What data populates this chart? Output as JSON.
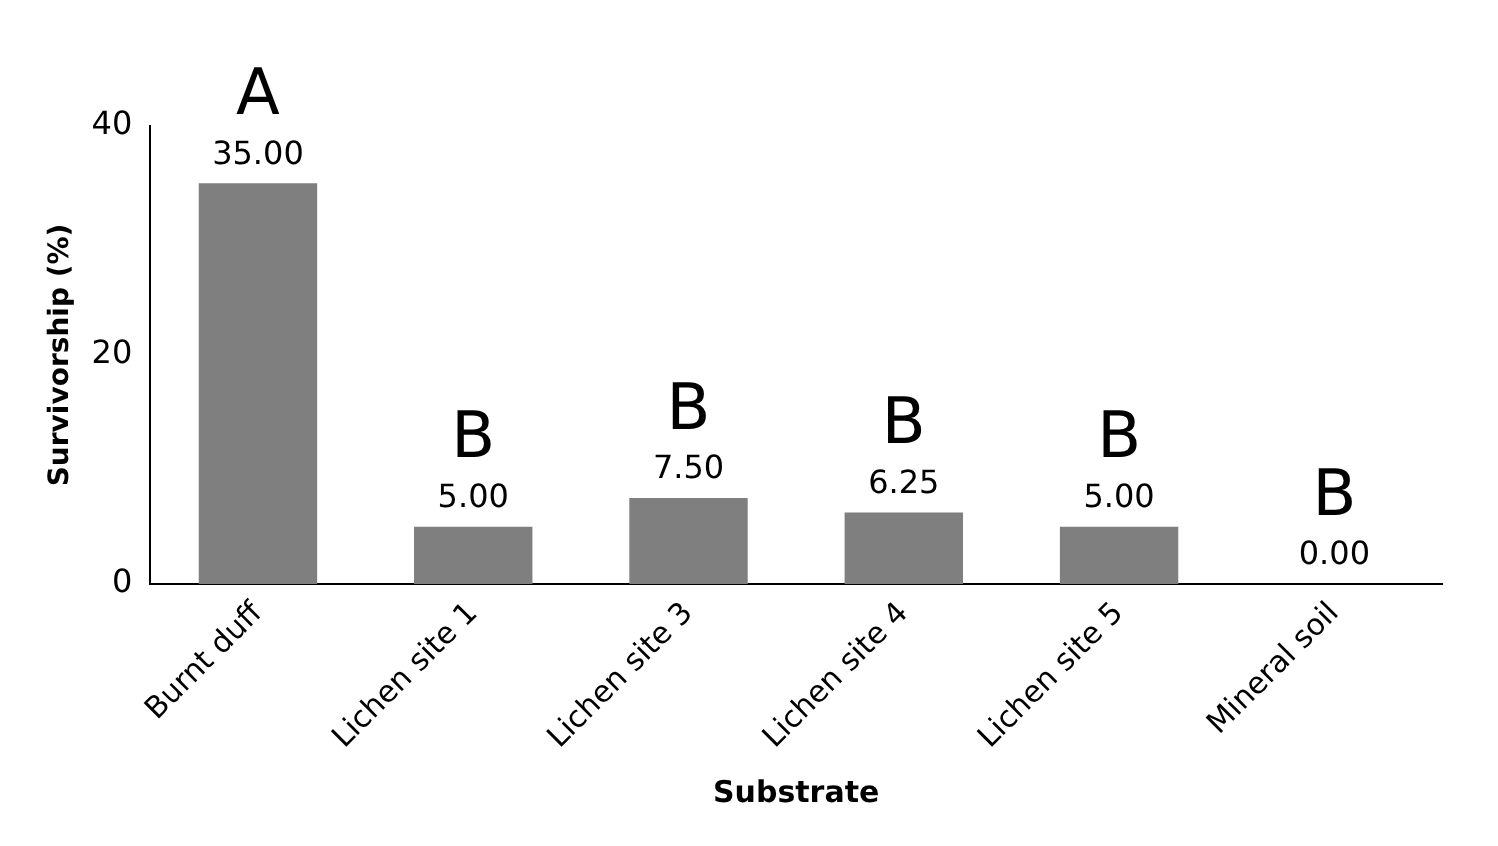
{
  "chart_data": {
    "type": "bar",
    "xlabel": "Substrate",
    "ylabel": "Survivorship (%)",
    "categories": [
      "Burnt duff",
      "Lichen site 1",
      "Lichen site 3",
      "Lichen site 4",
      "Lichen site 5",
      "Mineral soil"
    ],
    "values": [
      35,
      5,
      7.5,
      6.25,
      5,
      0
    ],
    "value_labels": [
      "35.00",
      "5.00",
      "7.50",
      "6.25",
      "5.00",
      "0.00"
    ],
    "color": "#7f7f7f",
    "ylim": [
      0,
      40
    ],
    "yticks": [
      0,
      20,
      40
    ],
    "grid": false,
    "legend": false,
    "annotations": [
      {
        "text": "A",
        "x": "Burnt duff",
        "y": 35
      },
      {
        "text": "B",
        "x": "Lichen site 1",
        "y": 5
      },
      {
        "text": "B",
        "x": "Lichen site 3",
        "y": 7.5
      },
      {
        "text": "B",
        "x": "Lichen site 4",
        "y": 6.25
      },
      {
        "text": "B",
        "x": "Lichen site 5",
        "y": 5
      },
      {
        "text": "B",
        "x": "Mineral soil",
        "y": 0
      }
    ]
  }
}
